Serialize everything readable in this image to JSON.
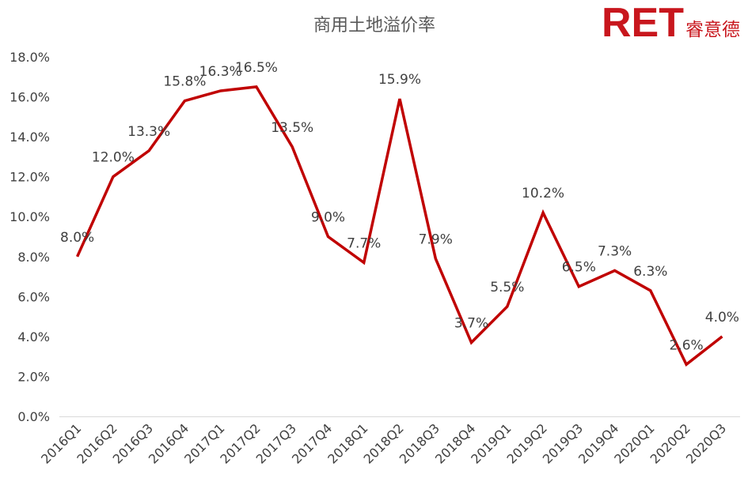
{
  "brand": {
    "mark": "RET",
    "name": "睿意德",
    "color": "#c8161d"
  },
  "chart_data": {
    "type": "line",
    "title": "商用土地溢价率",
    "xlabel": "",
    "ylabel": "",
    "categories": [
      "2016Q1",
      "2016Q2",
      "2016Q3",
      "2016Q4",
      "2017Q1",
      "2017Q2",
      "2017Q3",
      "2017Q4",
      "2018Q1",
      "2018Q2",
      "2018Q3",
      "2018Q4",
      "2019Q1",
      "2019Q2",
      "2019Q3",
      "2019Q4",
      "2020Q1",
      "2020Q2",
      "2020Q3"
    ],
    "series": [
      {
        "values": [
          8.0,
          12.0,
          13.3,
          15.8,
          16.3,
          16.5,
          13.5,
          9.0,
          7.7,
          15.9,
          7.9,
          3.7,
          5.5,
          10.2,
          6.5,
          7.3,
          6.3,
          2.6,
          4.0
        ],
        "labels": [
          "8.0%",
          "12.0%",
          "13.3%",
          "15.8%",
          "16.3%",
          "16.5%",
          "13.5%",
          "9.0%",
          "7.7%",
          "15.9%",
          "7.9%",
          "3.7%",
          "5.5%",
          "10.2%",
          "6.5%",
          "7.3%",
          "6.3%",
          "2.6%",
          "4.0%"
        ],
        "color": "#c00000"
      }
    ],
    "ylim": [
      0,
      18
    ],
    "yticks": [
      "0.0%",
      "2.0%",
      "4.0%",
      "6.0%",
      "8.0%",
      "10.0%",
      "12.0%",
      "14.0%",
      "16.0%",
      "18.0%"
    ],
    "grid": false,
    "legend": "none"
  }
}
